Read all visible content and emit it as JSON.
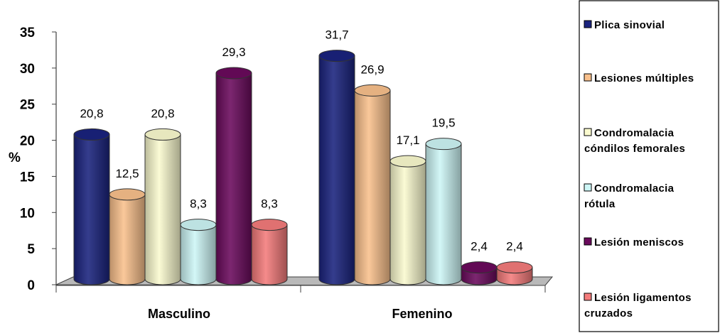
{
  "chart_data": {
    "type": "bar",
    "categories": [
      "Masculino",
      "Femenino"
    ],
    "ylabel": "%",
    "ylim": [
      0,
      35
    ],
    "yticks": [
      "0",
      "5",
      "10",
      "15",
      "20",
      "25",
      "30",
      "35"
    ],
    "grid": false,
    "legend_position": "right",
    "series": [
      {
        "name": "Plica sinovial",
        "legend_lines": [
          "Plica sinovial"
        ],
        "color": "#1a237e",
        "values": [
          20.8,
          31.7
        ],
        "labels": [
          "20,8",
          "31,7"
        ]
      },
      {
        "name": "Lesiones múltiples",
        "legend_lines": [
          "Lesiones múltiples"
        ],
        "color": "#f9c08c",
        "values": [
          12.5,
          26.9
        ],
        "labels": [
          "12,5",
          "26,9"
        ]
      },
      {
        "name": "Condromalacia cóndilos femorales",
        "legend_lines": [
          "Condromalacia",
          "cóndilos femorales"
        ],
        "color": "#fbfbcf",
        "values": [
          20.8,
          17.1
        ],
        "labels": [
          "20,8",
          "17,1"
        ]
      },
      {
        "name": "Condromalacia rótula",
        "legend_lines": [
          "Condromalacia",
          "rótula"
        ],
        "color": "#cdf6f6",
        "values": [
          8.3,
          19.5
        ],
        "labels": [
          "8,3",
          "19,5"
        ]
      },
      {
        "name": "Lesión meniscos",
        "legend_lines": [
          "Lesión meniscos"
        ],
        "color": "#6a0a5c",
        "values": [
          29.3,
          2.4
        ],
        "labels": [
          "29,3",
          "2,4"
        ]
      },
      {
        "name": "Lesión ligamentos cruzados",
        "legend_lines": [
          "Lesión ligamentos",
          "cruzados"
        ],
        "color": "#f47b7b",
        "values": [
          8.3,
          2.4
        ],
        "labels": [
          "8,3",
          "2,4"
        ]
      }
    ]
  }
}
